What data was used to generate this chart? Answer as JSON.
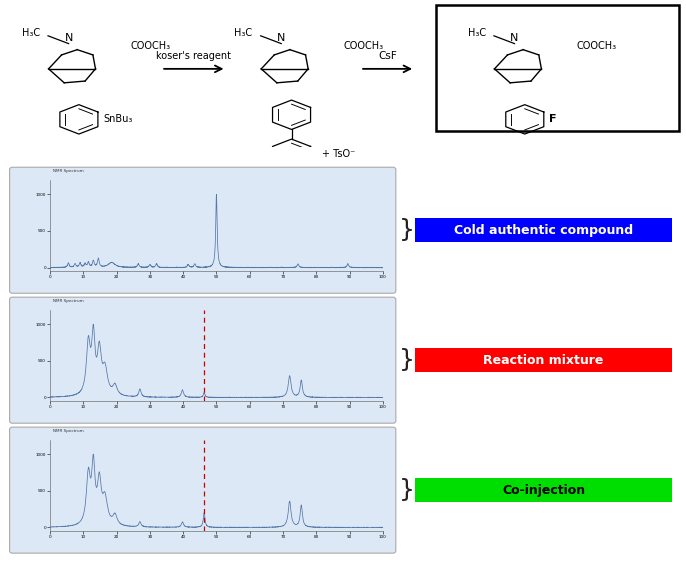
{
  "bg_color": "#ffffff",
  "nmr_panel_bg": "#dce8f5",
  "nmr_panel_border": "#aaaaaa",
  "nmr_line_color": "#5577aa",
  "red_dashed_color": "#cc0000",
  "label_boxes": [
    {
      "text": "Cold authentic compound",
      "bg": "#0000ff",
      "fg": "#ffffff"
    },
    {
      "text": "Reaction mixture",
      "bg": "#ff0000",
      "fg": "#ffffff"
    },
    {
      "text": "Co-injection",
      "bg": "#00dd00",
      "fg": "#000000"
    }
  ],
  "koser_label": "koser's reagent",
  "csf_label": "CsF",
  "mol1_labels": {
    "CH3": "H₃C",
    "N": "N",
    "ester": "COOCH₃",
    "sub": "SnBu₃"
  },
  "mol2_labels": {
    "CH3": "H₃C",
    "N": "N",
    "ester": "COOCH₃",
    "sub": "TsO-"
  },
  "mol3_labels": {
    "CH3": "H₃C",
    "N": "N",
    "ester": "COOCH₃",
    "sub": "F"
  }
}
